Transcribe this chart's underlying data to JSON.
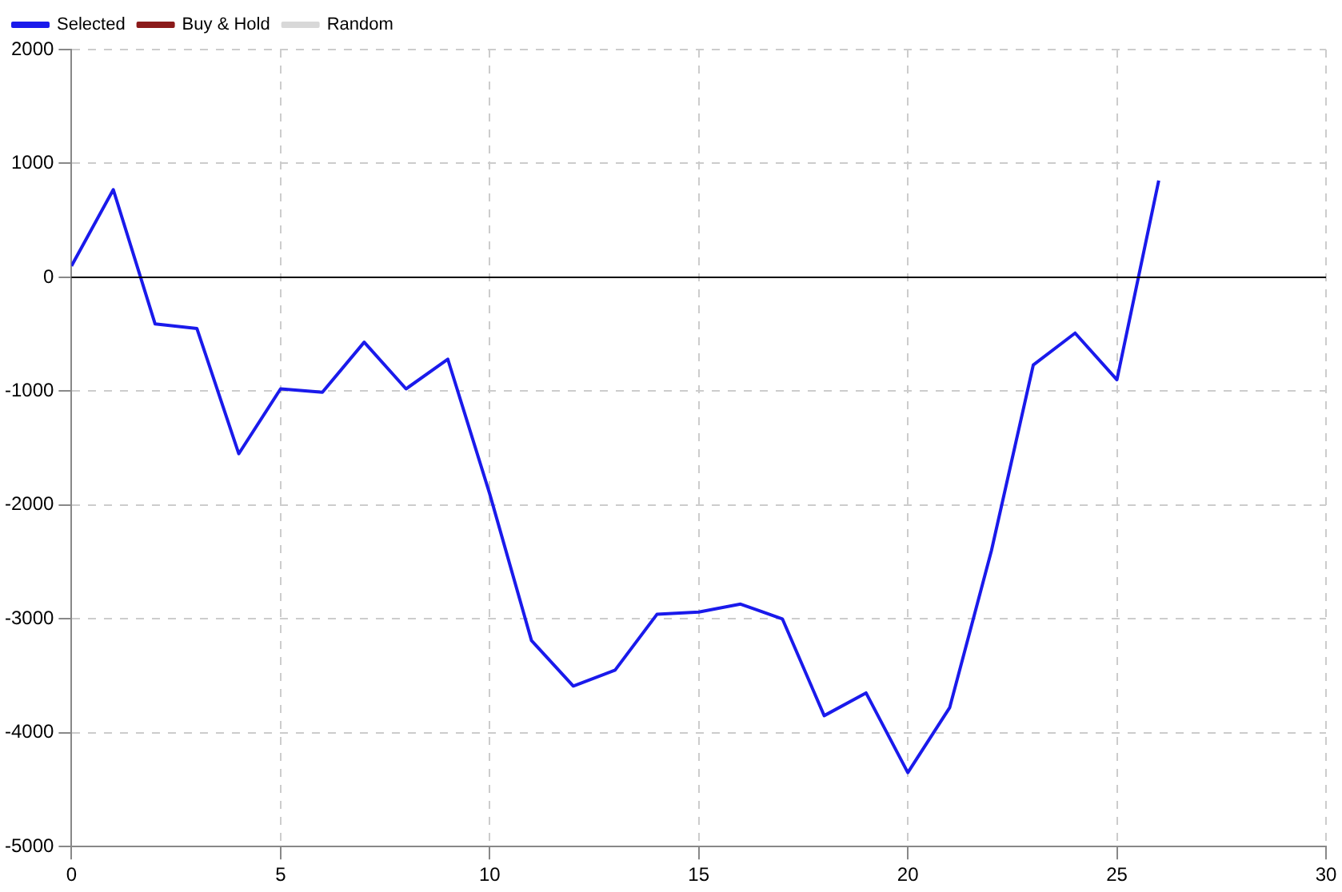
{
  "chart_data": {
    "type": "line",
    "x": [
      0,
      1,
      2,
      3,
      4,
      5,
      6,
      7,
      8,
      9,
      10,
      11,
      12,
      13,
      14,
      15,
      16,
      17,
      18,
      19,
      20,
      21,
      22,
      23,
      24,
      25,
      26
    ],
    "series": [
      {
        "name": "Selected",
        "color": "#1a1aeb",
        "values": [
          100,
          770,
          -410,
          -450,
          -1550,
          -980,
          -1010,
          -570,
          -980,
          -720,
          -1900,
          -3190,
          -3590,
          -3450,
          -2960,
          -2940,
          -2870,
          -3000,
          -3850,
          -3650,
          -4350,
          -3780,
          -2400,
          -770,
          -490,
          -900,
          850
        ]
      },
      {
        "name": "Buy & Hold",
        "color": "#8b1a1a",
        "values": [
          null,
          null,
          null,
          null,
          null,
          null,
          null,
          null,
          null,
          null,
          null,
          null,
          null,
          null,
          null,
          null,
          null,
          null,
          null,
          null,
          null,
          null,
          null,
          null,
          null,
          null,
          null
        ]
      },
      {
        "name": "Random",
        "color": "#d8d8d8",
        "values": [
          null,
          null,
          null,
          null,
          null,
          null,
          null,
          null,
          null,
          null,
          null,
          null,
          null,
          null,
          null,
          null,
          null,
          null,
          null,
          null,
          null,
          null,
          null,
          null,
          null,
          null,
          null
        ]
      }
    ],
    "xlim": [
      0,
      30
    ],
    "xticks": [
      0,
      5,
      10,
      15,
      20,
      25,
      30
    ],
    "ylim": [
      -5000,
      2000
    ],
    "yticks": [
      -5000,
      -4000,
      -3000,
      -2000,
      -1000,
      0,
      1000,
      2000
    ],
    "ref_lines": [
      {
        "axis": "y",
        "value": 0,
        "color": "#000000"
      }
    ],
    "grid": true,
    "legend": "top left",
    "marker": "none",
    "line_style": "solid"
  }
}
